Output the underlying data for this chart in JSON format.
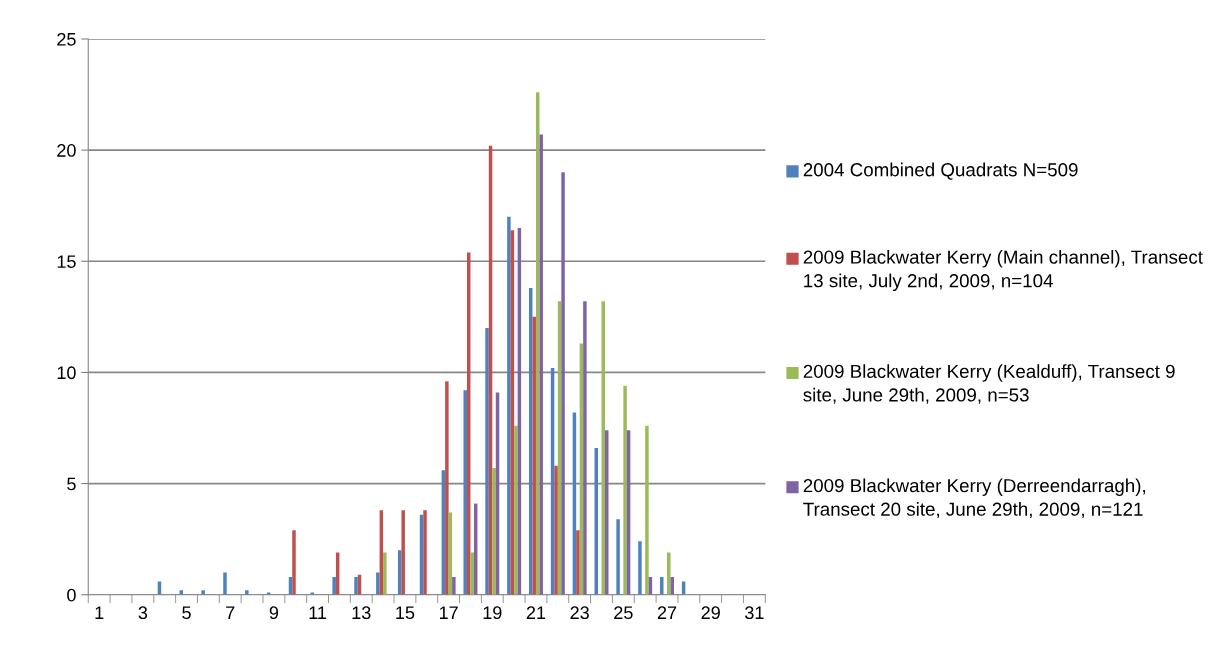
{
  "chart_data": {
    "type": "bar",
    "categories": [
      "1",
      null,
      "3",
      null,
      "5",
      null,
      "7",
      null,
      "9",
      null,
      "11",
      null,
      "13",
      null,
      "15",
      null,
      "17",
      null,
      "19",
      null,
      "21",
      null,
      "23",
      null,
      "25",
      null,
      "27",
      null,
      "29",
      null,
      "31"
    ],
    "series": [
      {
        "name": "2004 Combined Quadrats N=509",
        "color": "#4f81bd",
        "values": [
          0,
          0,
          0,
          0.6,
          0.2,
          0.2,
          1.0,
          0.2,
          0.1,
          0.8,
          0.1,
          0.8,
          0.8,
          1.0,
          2.0,
          3.6,
          5.6,
          9.2,
          12.0,
          17.0,
          13.8,
          10.2,
          8.2,
          6.6,
          3.4,
          2.4,
          0.8,
          0.6,
          0,
          0,
          0
        ]
      },
      {
        "name": "2009 Blackwater Kerry (Main channel), Transect 13 site, July 2nd, 2009, n=104",
        "color": "#c0504d",
        "values": [
          0,
          0,
          0,
          0,
          0,
          0,
          0,
          0,
          0,
          2.9,
          0,
          1.9,
          0.9,
          3.8,
          3.8,
          3.8,
          9.6,
          15.4,
          20.2,
          16.4,
          12.5,
          5.8,
          2.9,
          0,
          0,
          0,
          0,
          0,
          0,
          0,
          0
        ]
      },
      {
        "name": "2009 Blackwater Kerry (Kealduff), Transect 9 site, June 29th, 2009, n=53",
        "color": "#9bbb59",
        "values": [
          0,
          0,
          0,
          0,
          0,
          0,
          0,
          0,
          0,
          0,
          0,
          0,
          0,
          1.9,
          0,
          0,
          3.7,
          1.9,
          5.7,
          7.6,
          22.6,
          13.2,
          11.3,
          13.2,
          9.4,
          7.6,
          1.9,
          0,
          0,
          0,
          0
        ]
      },
      {
        "name": "2009 Blackwater Kerry (Derreendarragh), Transect 20 site, June 29th, 2009, n=121",
        "color": "#8064a2",
        "values": [
          0,
          0,
          0,
          0,
          0,
          0,
          0,
          0,
          0,
          0,
          0,
          0,
          0,
          0,
          0,
          0,
          0.8,
          4.1,
          9.1,
          16.5,
          20.7,
          19.0,
          13.2,
          7.4,
          7.4,
          0.8,
          0.8,
          0,
          0,
          0,
          0
        ]
      }
    ],
    "ylim": [
      0,
      25
    ],
    "yticks": [
      0,
      5,
      10,
      15,
      20,
      25
    ],
    "grid": "y",
    "legend": "right"
  }
}
